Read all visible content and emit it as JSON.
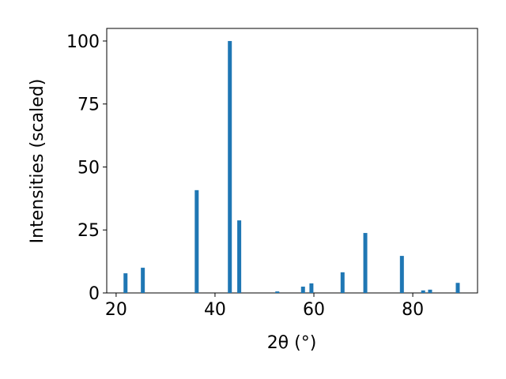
{
  "chart_data": {
    "type": "bar",
    "xlabel": "2θ (°)",
    "ylabel": "Intensities (scaled)",
    "x": [
      21.9,
      25.4,
      36.3,
      43.0,
      44.9,
      52.6,
      57.8,
      59.5,
      65.8,
      70.4,
      77.8,
      82.1,
      83.5,
      89.1
    ],
    "values": [
      7.8,
      10,
      40.8,
      100,
      28.8,
      0.6,
      2.5,
      3.8,
      8.2,
      23.8,
      14.7,
      1,
      1.3,
      4
    ],
    "color": "#1f77b4",
    "xlim": [
      18.1,
      93.1
    ],
    "xticks": [
      20,
      40,
      60,
      80
    ],
    "ylim": [
      0,
      105
    ],
    "yticks": [
      0,
      25,
      50,
      75,
      100
    ],
    "grid": false
  }
}
